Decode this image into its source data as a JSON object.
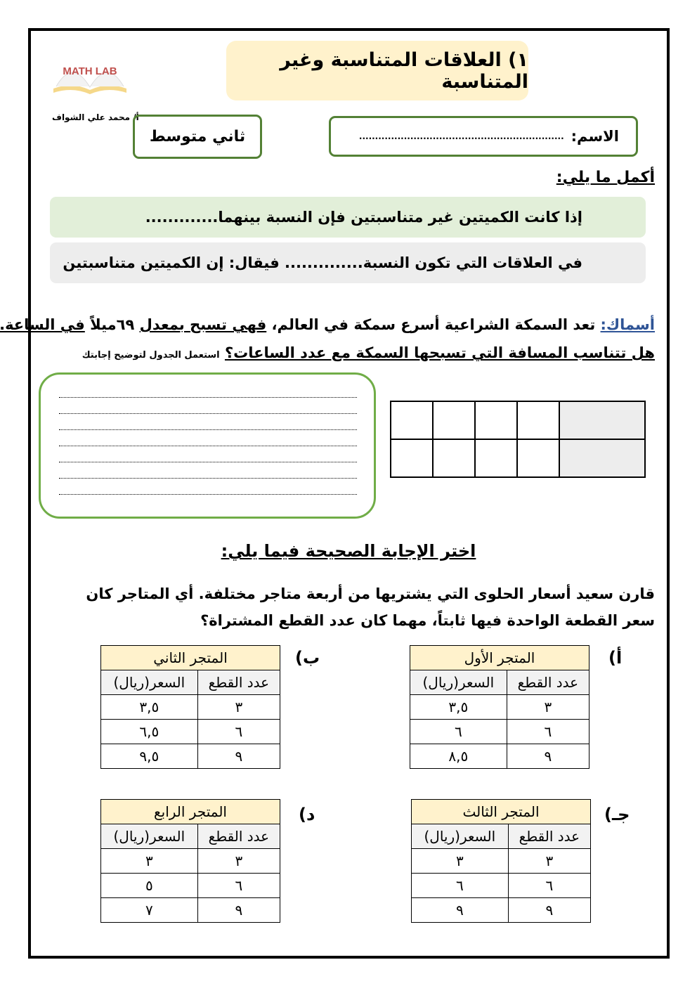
{
  "header": {
    "logo_text": "MATH LAB",
    "title": "١) العلاقات المتناسبة وغير المتناسبة",
    "teacher": "أ/ محمد علي الشواف",
    "grade": "ثاني متوسط",
    "name_label": "الاسم:",
    "name_placeholder": "................................................................"
  },
  "section1": {
    "heading": "أكمل ما يلي:",
    "sentence1": "إذا كانت الكميتين غير متناسبتين فإن النسبة بينهما.............",
    "sentence2": "في العلاقات التي تكون النسبة.............. فيقال: إن الكميتين متناسبتين"
  },
  "fish": {
    "label": "أسماك:",
    "part1": "تعد السمكة الشراعية أسرع سمكة في العالم،",
    "part2": "فهي تسبح بمعدل",
    "part3": "٦٩ميلاً",
    "part4": "في الساعة.",
    "question": "هل تتناسب المسافة التي تسبحها السمكة مع عدد الساعات؟",
    "hint": "استعمل الجدول لتوضيح إجابتك",
    "dots": "..........................................................................................."
  },
  "section2": {
    "heading": "اختر الإجابة الصحيحة فيما يلي:",
    "question": "قارن سعيد أسعار الحلوى التي يشتريها من أربعة متاجر مختلفة. أي المتاجر كان سعر القطعة الواحدة فيها ثابتاً، مهما كان عدد القطع المشتراة؟",
    "col_count": "عدد القطع",
    "col_price": "السعر(ريال)",
    "stores": [
      {
        "option": "أ)",
        "name": "المتجر الأول",
        "rows": [
          [
            "٣",
            "٣,٥"
          ],
          [
            "٦",
            "٦"
          ],
          [
            "٩",
            "٨,٥"
          ]
        ]
      },
      {
        "option": "ب)",
        "name": "المتجر الثاني",
        "rows": [
          [
            "٣",
            "٣,٥"
          ],
          [
            "٦",
            "٦,٥"
          ],
          [
            "٩",
            "٩,٥"
          ]
        ]
      },
      {
        "option": "جـ)",
        "name": "المتجر الثالث",
        "rows": [
          [
            "٣",
            "٣"
          ],
          [
            "٦",
            "٦"
          ],
          [
            "٩",
            "٩"
          ]
        ]
      },
      {
        "option": "د)",
        "name": "المتجر الرابع",
        "rows": [
          [
            "٣",
            "٣"
          ],
          [
            "٦",
            "٥"
          ],
          [
            "٩",
            "٧"
          ]
        ]
      }
    ]
  },
  "colors": {
    "green_border": "#538135",
    "title_bg": "#fff2cc",
    "band_green": "#e2efd9",
    "band_gray": "#ededed",
    "label_blue": "#2f5496"
  }
}
